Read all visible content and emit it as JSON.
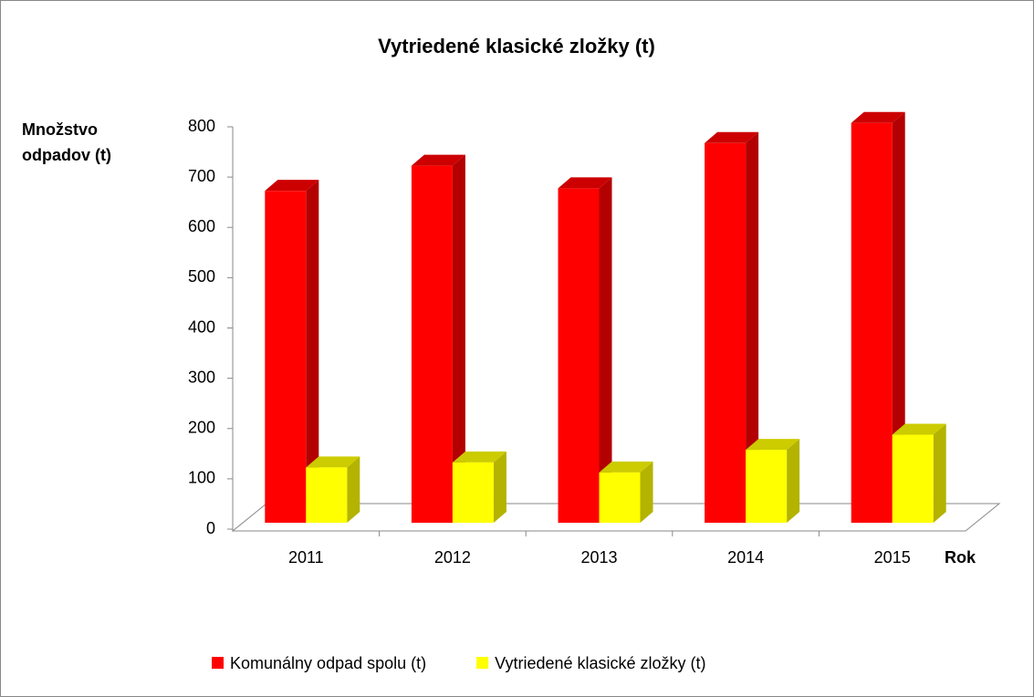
{
  "chart_data": {
    "type": "bar3d",
    "title": "Vytriedené klasické zložky (t)",
    "y_label": "Množstvo odpadov (t)",
    "x_label": "Rok",
    "categories": [
      "2011",
      "2012",
      "2013",
      "2014",
      "2015"
    ],
    "series": [
      {
        "name": "Komunálny odpad spolu (t)",
        "color": "#ff0000",
        "values": [
          660,
          710,
          665,
          755,
          795
        ]
      },
      {
        "name": "Vytriedené klasické zložky (t)",
        "color": "#ffff00",
        "values": [
          110,
          120,
          100,
          145,
          175
        ]
      }
    ],
    "ylim": [
      0,
      800
    ],
    "yticks": [
      0,
      100,
      200,
      300,
      400,
      500,
      600,
      700,
      800
    ],
    "legend": "bottom"
  }
}
